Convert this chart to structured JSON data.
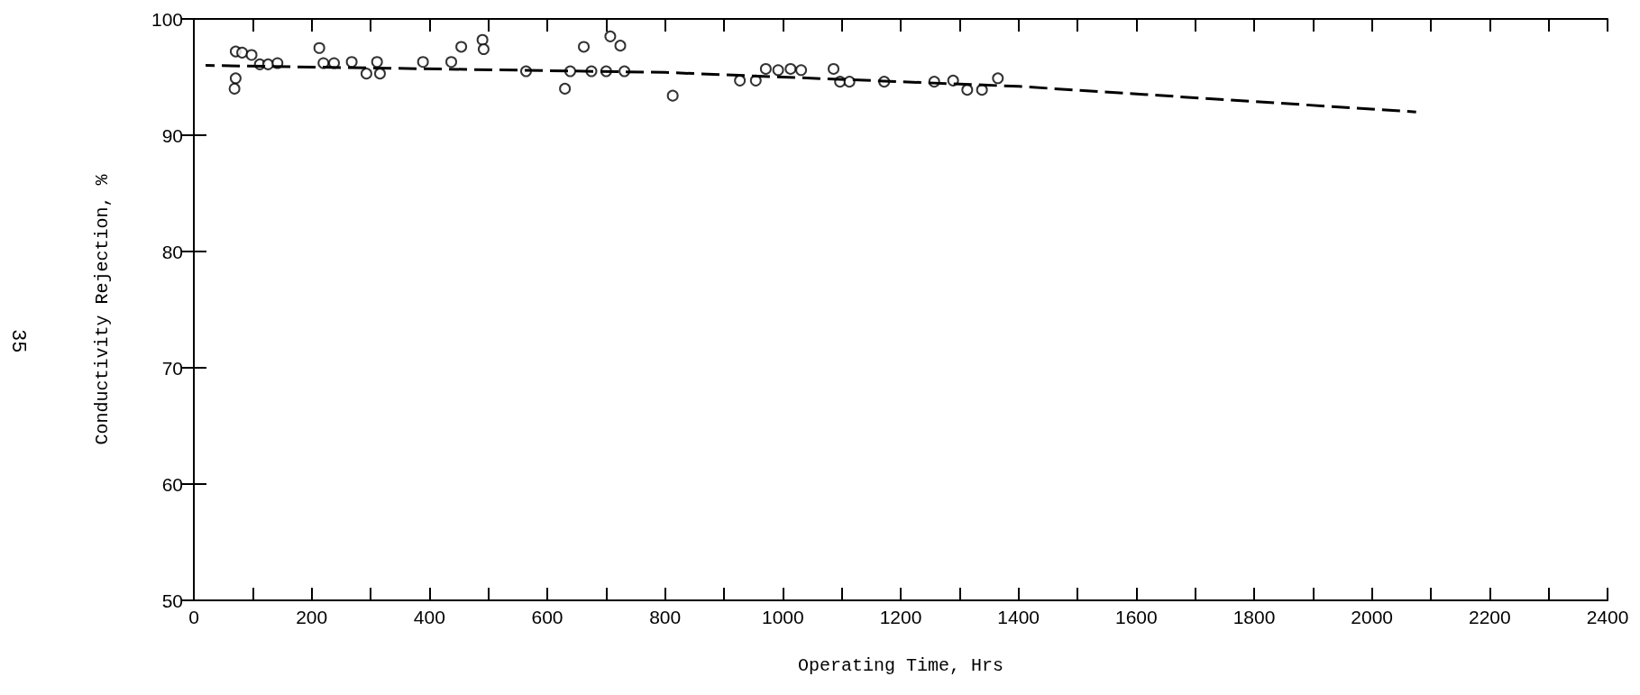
{
  "chart_data": {
    "type": "scatter",
    "xlabel": "Operating Time, Hrs",
    "ylabel": "Conductivity Rejection, %",
    "annotations": [
      "35"
    ],
    "xlim": [
      0,
      2400
    ],
    "ylim": [
      50,
      100
    ],
    "xticks": [
      0,
      {
        "value": 100,
        "label": null
      },
      200,
      {
        "value": 300,
        "label": null
      },
      400,
      {
        "value": 500,
        "label": null
      },
      600,
      {
        "value": 700,
        "label": null
      },
      800,
      {
        "value": 900,
        "label": null
      },
      1000,
      {
        "value": 1100,
        "label": null
      },
      1200,
      {
        "value": 1300,
        "label": null
      },
      1400,
      {
        "value": 1500,
        "label": null
      },
      1600,
      {
        "value": 1700,
        "label": null
      },
      1800,
      {
        "value": 1900,
        "label": null
      },
      2000,
      {
        "value": 2100,
        "label": null
      },
      2200,
      {
        "value": 2300,
        "label": null
      },
      2400
    ],
    "yticks": [
      50,
      60,
      70,
      80,
      90,
      100
    ],
    "grid": false,
    "marker": "circle",
    "series": [
      {
        "color": "#000000",
        "x": [
          71,
          82,
          98,
          71,
          69,
          112,
          126,
          142,
          213,
          220,
          238,
          268,
          293,
          311,
          316,
          389,
          437,
          454,
          490,
          492,
          564,
          630,
          639,
          662,
          675,
          700,
          707,
          724,
          731,
          813,
          927,
          954,
          971,
          992,
          1013,
          1031,
          1086,
          1097,
          1113,
          1172,
          1257,
          1289,
          1313,
          1338,
          1365
        ],
        "values": [
          97.2,
          97.1,
          96.9,
          94.9,
          94.0,
          96.1,
          96.1,
          96.2,
          97.5,
          96.2,
          96.2,
          96.3,
          95.3,
          96.3,
          95.3,
          96.3,
          96.3,
          97.6,
          98.2,
          97.4,
          95.5,
          94.0,
          95.5,
          97.6,
          95.5,
          95.5,
          98.5,
          97.7,
          95.5,
          93.4,
          94.7,
          94.7,
          95.7,
          95.6,
          95.7,
          95.6,
          95.7,
          94.6,
          94.6,
          94.6,
          94.6,
          94.7,
          93.9,
          93.9,
          94.9
        ]
      },
      {
        "type": "line",
        "color": "#000000",
        "line_style": "dashed",
        "marker": "none",
        "x": [
          20,
          800,
          1400,
          2075
        ],
        "values": [
          96.0,
          95.4,
          94.2,
          92.0
        ]
      }
    ]
  }
}
